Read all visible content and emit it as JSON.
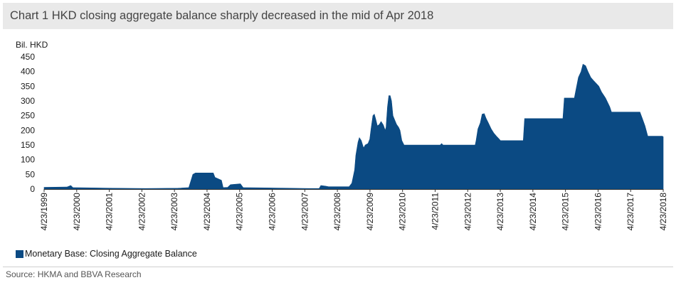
{
  "chart_data": {
    "type": "area",
    "title": "Chart 1 HKD closing aggregate balance sharply decreased in the mid of Apr 2018",
    "ylabel": "Bil. HKD",
    "ylim": [
      0,
      450
    ],
    "yticks": [
      0,
      50,
      100,
      150,
      200,
      250,
      300,
      350,
      400,
      450
    ],
    "xlim": [
      "1999-04-23",
      "2018-04-23"
    ],
    "xticks": [
      "4/23/1999",
      "4/23/2000",
      "4/23/2001",
      "4/23/2002",
      "4/23/2003",
      "4/23/2004",
      "4/23/2005",
      "4/23/2006",
      "4/23/2007",
      "4/23/2008",
      "4/23/2009",
      "4/23/2010",
      "4/23/2011",
      "4/23/2012",
      "4/23/2013",
      "4/23/2014",
      "4/23/2015",
      "4/23/2016",
      "4/23/2017",
      "4/23/2018"
    ],
    "grid": false,
    "legend_position": "bottom-left",
    "series": [
      {
        "name": "Monetary Base: Closing  Aggregate Balance",
        "color": "#0b4a83",
        "points": [
          [
            "1999-04-23",
            6
          ],
          [
            "2000-01-03",
            7
          ],
          [
            "2000-02-15",
            12
          ],
          [
            "2000-03-10",
            5
          ],
          [
            "2001-06-01",
            3
          ],
          [
            "2002-06-01",
            2
          ],
          [
            "2003-06-01",
            3
          ],
          [
            "2003-10-01",
            5
          ],
          [
            "2003-11-15",
            50
          ],
          [
            "2003-12-15",
            55
          ],
          [
            "2004-07-01",
            55
          ],
          [
            "2004-07-20",
            40
          ],
          [
            "2004-10-01",
            30
          ],
          [
            "2004-10-20",
            5
          ],
          [
            "2004-12-10",
            6
          ],
          [
            "2005-01-10",
            15
          ],
          [
            "2005-05-01",
            18
          ],
          [
            "2005-06-01",
            5
          ],
          [
            "2007-06-01",
            2
          ],
          [
            "2007-10-01",
            2
          ],
          [
            "2007-10-20",
            12
          ],
          [
            "2007-12-15",
            10
          ],
          [
            "2008-01-15",
            8
          ],
          [
            "2008-09-01",
            8
          ],
          [
            "2008-10-01",
            20
          ],
          [
            "2008-11-01",
            65
          ],
          [
            "2008-11-15",
            115
          ],
          [
            "2008-12-10",
            160
          ],
          [
            "2008-12-25",
            175
          ],
          [
            "2009-01-15",
            165
          ],
          [
            "2009-02-10",
            140
          ],
          [
            "2009-03-01",
            150
          ],
          [
            "2009-04-01",
            155
          ],
          [
            "2009-04-20",
            170
          ],
          [
            "2009-05-05",
            205
          ],
          [
            "2009-05-25",
            250
          ],
          [
            "2009-06-10",
            255
          ],
          [
            "2009-06-25",
            240
          ],
          [
            "2009-07-15",
            215
          ],
          [
            "2009-08-05",
            220
          ],
          [
            "2009-08-25",
            230
          ],
          [
            "2009-09-20",
            218
          ],
          [
            "2009-10-10",
            200
          ],
          [
            "2009-10-20",
            210
          ],
          [
            "2009-11-05",
            280
          ],
          [
            "2009-11-20",
            318
          ],
          [
            "2009-12-05",
            318
          ],
          [
            "2009-12-20",
            300
          ],
          [
            "2010-01-05",
            250
          ],
          [
            "2010-01-25",
            235
          ],
          [
            "2010-02-15",
            220
          ],
          [
            "2010-03-10",
            210
          ],
          [
            "2010-03-25",
            200
          ],
          [
            "2010-04-15",
            165
          ],
          [
            "2010-05-10",
            150
          ],
          [
            "2011-06-20",
            150
          ],
          [
            "2011-07-05",
            155
          ],
          [
            "2011-07-20",
            150
          ],
          [
            "2012-07-15",
            150
          ],
          [
            "2012-07-25",
            165
          ],
          [
            "2012-08-15",
            205
          ],
          [
            "2012-09-10",
            225
          ],
          [
            "2012-10-01",
            255
          ],
          [
            "2012-10-25",
            257
          ],
          [
            "2012-11-15",
            240
          ],
          [
            "2012-12-10",
            225
          ],
          [
            "2013-01-10",
            205
          ],
          [
            "2013-02-10",
            190
          ],
          [
            "2013-03-10",
            180
          ],
          [
            "2013-04-10",
            170
          ],
          [
            "2013-04-25",
            165
          ],
          [
            "2014-01-05",
            165
          ],
          [
            "2014-01-20",
            240
          ],
          [
            "2014-04-15",
            240
          ],
          [
            "2015-03-25",
            240
          ],
          [
            "2015-04-10",
            310
          ],
          [
            "2015-08-01",
            310
          ],
          [
            "2015-08-20",
            340
          ],
          [
            "2015-09-15",
            380
          ],
          [
            "2015-10-15",
            400
          ],
          [
            "2015-11-05",
            425
          ],
          [
            "2015-12-05",
            420
          ],
          [
            "2016-01-01",
            400
          ],
          [
            "2016-02-01",
            380
          ],
          [
            "2016-03-01",
            370
          ],
          [
            "2016-04-01",
            360
          ],
          [
            "2016-05-01",
            350
          ],
          [
            "2016-06-01",
            330
          ],
          [
            "2016-07-15",
            310
          ],
          [
            "2016-09-01",
            280
          ],
          [
            "2016-09-20",
            262
          ],
          [
            "2017-07-15",
            262
          ],
          [
            "2017-08-05",
            262
          ],
          [
            "2017-09-01",
            240
          ],
          [
            "2017-10-01",
            215
          ],
          [
            "2017-11-01",
            180
          ],
          [
            "2018-04-12",
            180
          ],
          [
            "2018-04-23",
            178
          ]
        ]
      }
    ]
  },
  "source": "Source: HKMA and BBVA Research"
}
